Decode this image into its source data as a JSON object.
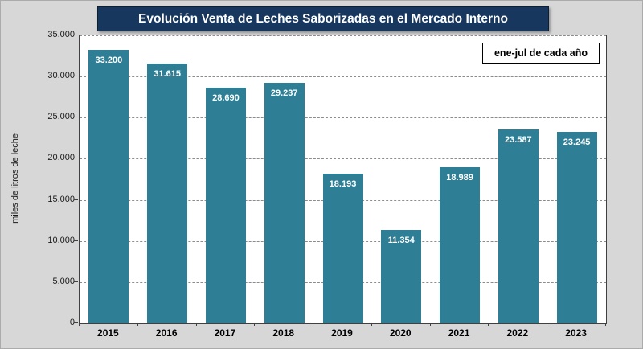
{
  "title": "Evolución Venta de Leches Saborizadas en el Mercado Interno",
  "note": "ene-jul de cada año",
  "ylabel": "miles de litros de leche",
  "colors": {
    "bar": "#2E7E95",
    "title_bg": "#17375E",
    "title_text": "#FFFFFF",
    "canvas_bg": "#D7D7D7",
    "plot_bg": "#FFFFFF",
    "gridline": "#8C8C8C",
    "axis": "#404040"
  },
  "chart_data": {
    "type": "bar",
    "title": "Evolución Venta de Leches Saborizadas en el Mercado Interno",
    "annotation": "ene-jul de cada año",
    "categories": [
      "2015",
      "2016",
      "2017",
      "2018",
      "2019",
      "2020",
      "2021",
      "2022",
      "2023"
    ],
    "values": [
      33200,
      31615,
      28690,
      29237,
      18193,
      11354,
      18989,
      23587,
      23245
    ],
    "value_labels": [
      "33.200",
      "31.615",
      "28.690",
      "29.237",
      "18.193",
      "11.354",
      "18.989",
      "23.587",
      "23.245"
    ],
    "xlabel": "",
    "ylabel": "miles de litros de leche",
    "ylim": [
      0,
      35000
    ],
    "ytick_values": [
      0,
      5000,
      10000,
      15000,
      20000,
      25000,
      30000,
      35000
    ],
    "ytick_labels": [
      "0",
      "5.000",
      "10.000",
      "15.000",
      "20.000",
      "25.000",
      "30.000",
      "35.000"
    ],
    "grid": "horizontal-dashed",
    "legend_position": "top-right-inside"
  }
}
